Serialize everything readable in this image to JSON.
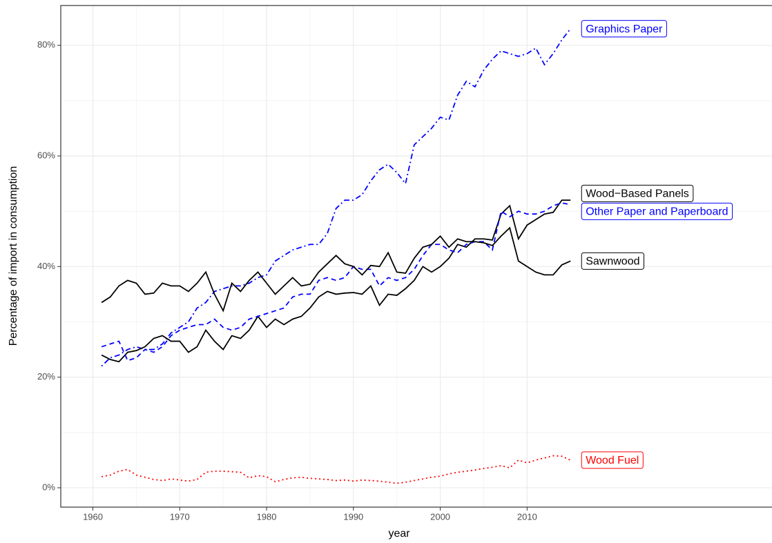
{
  "chart_data": {
    "type": "line",
    "x_label": "year",
    "y_label": "Percentage of import in consumption",
    "x": [
      1961,
      1962,
      1963,
      1964,
      1965,
      1966,
      1967,
      1968,
      1969,
      1970,
      1971,
      1972,
      1973,
      1974,
      1975,
      1976,
      1977,
      1978,
      1979,
      1980,
      1981,
      1982,
      1983,
      1984,
      1985,
      1986,
      1987,
      1988,
      1989,
      1990,
      1991,
      1992,
      1993,
      1994,
      1995,
      1996,
      1997,
      1998,
      1999,
      2000,
      2001,
      2002,
      2003,
      2004,
      2005,
      2006,
      2007,
      2008,
      2009,
      2010,
      2011,
      2012,
      2013,
      2014,
      2015
    ],
    "series": [
      {
        "name": "Graphics Paper",
        "color": "#0000ff",
        "linetype": "dotdash",
        "values": [
          22,
          23.5,
          24,
          25,
          25.5,
          25,
          25,
          26,
          28,
          29,
          30,
          32.5,
          33.5,
          35.5,
          36,
          36.5,
          36.5,
          37,
          38,
          38.5,
          41,
          42,
          43,
          43.5,
          44,
          44,
          46,
          50.5,
          52,
          52,
          53,
          55.5,
          57.5,
          58.5,
          57,
          55,
          62,
          63.5,
          65,
          67,
          66.5,
          71,
          73.5,
          72.5,
          75.5,
          77.5,
          79,
          78.5,
          78,
          78.5,
          79.5,
          76.5,
          78.5,
          81,
          83
        ]
      },
      {
        "name": "Wood−Based Panels",
        "color": "#000000",
        "linetype": "solid",
        "values": [
          24,
          23.2,
          22.8,
          24.5,
          24.8,
          25.5,
          27,
          27.5,
          26.5,
          26.5,
          24.5,
          25.5,
          28.5,
          26.5,
          25,
          27.5,
          27,
          28.5,
          31,
          29,
          30.5,
          29.5,
          30.5,
          31,
          32.5,
          34.5,
          35.5,
          35,
          35.2,
          35.3,
          35,
          36.5,
          33,
          35,
          34.8,
          36,
          37.5,
          40,
          39,
          40,
          41.5,
          44,
          43.5,
          45,
          45,
          44.8,
          49.5,
          51,
          45,
          47.5,
          48.5,
          49.5,
          49.8,
          52,
          52
        ]
      },
      {
        "name": "Other Paper and Paperboard",
        "color": "#0000ff",
        "linetype": "dashed",
        "values": [
          25.5,
          26,
          26.5,
          23,
          23.5,
          25,
          24.5,
          25.5,
          27.5,
          28.5,
          29,
          29.5,
          29.5,
          30.5,
          29,
          28.5,
          29,
          30.5,
          31,
          31.5,
          32,
          32.5,
          34.5,
          35,
          35,
          37.5,
          38,
          37.5,
          38,
          40,
          39.5,
          39.5,
          36.5,
          38,
          37.5,
          38,
          39.5,
          42,
          44,
          44,
          43,
          42.5,
          44,
          44.5,
          44.5,
          43,
          50,
          49,
          50,
          49.5,
          49.5,
          50,
          51,
          51.5,
          51.2
        ]
      },
      {
        "name": "Sawnwood",
        "color": "#000000",
        "linetype": "solid",
        "values": [
          33.5,
          34.5,
          36.5,
          37.5,
          37,
          35,
          35.2,
          37,
          36.5,
          36.5,
          35.5,
          37,
          39,
          35,
          32,
          37,
          35.5,
          37.5,
          39,
          37,
          35,
          36.5,
          38,
          36.5,
          36.8,
          39,
          40.5,
          42,
          40.5,
          40,
          38.5,
          40.2,
          40,
          42.5,
          39,
          38.8,
          41.5,
          43.5,
          44,
          45.5,
          43.5,
          45,
          44.5,
          44.5,
          44.3,
          43.8,
          45.5,
          47,
          41,
          40,
          39,
          38.5,
          38.5,
          40.3,
          41
        ]
      },
      {
        "name": "Wood Fuel",
        "color": "#ff0000",
        "linetype": "dotted",
        "values": [
          2,
          2.3,
          3,
          3.3,
          2.3,
          1.9,
          1.5,
          1.3,
          1.6,
          1.4,
          1.2,
          1.5,
          2.8,
          3,
          3,
          2.9,
          2.8,
          1.8,
          2.2,
          2,
          1.1,
          1.5,
          1.8,
          1.9,
          1.7,
          1.6,
          1.5,
          1.3,
          1.4,
          1.2,
          1.4,
          1.3,
          1.2,
          1,
          0.8,
          1,
          1.3,
          1.6,
          1.9,
          2.1,
          2.5,
          2.8,
          3,
          3.2,
          3.5,
          3.7,
          4,
          3.6,
          5,
          4.5,
          5,
          5.4,
          5.8,
          5.7,
          5
        ]
      }
    ],
    "xlim": [
      1956.3,
      2038.2
    ],
    "xticks": [
      1960,
      1970,
      1980,
      1990,
      2000,
      2010
    ],
    "x_minor_ticks": [
      1965,
      1975,
      1985,
      1995,
      2005
    ],
    "ylim": [
      -3.5,
      87.2
    ],
    "yticks": [
      {
        "value": 0,
        "label": "0%"
      },
      {
        "value": 20,
        "label": "20%"
      },
      {
        "value": 40,
        "label": "40%"
      },
      {
        "value": 60,
        "label": "60%"
      },
      {
        "value": 80,
        "label": "80%"
      }
    ],
    "y_minor_ticks": [
      10,
      30,
      50,
      70
    ],
    "grid": true,
    "legend": "end-labels"
  }
}
